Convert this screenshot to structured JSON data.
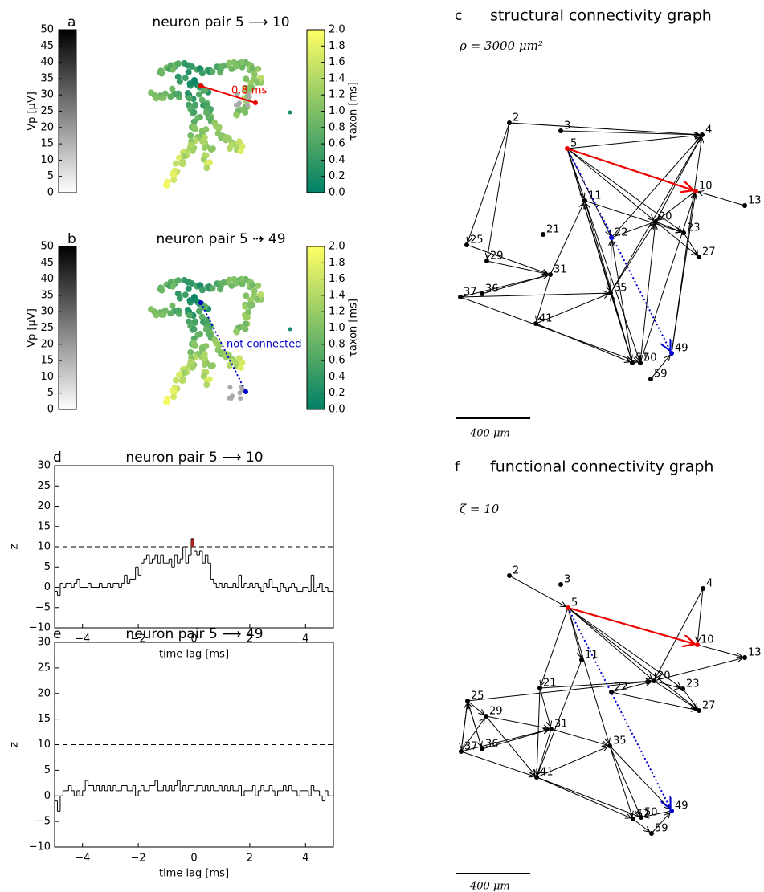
{
  "panels": {
    "a": {
      "letter": "a",
      "title": "neuron pair 5 ⟶ 10",
      "annotation": "0.8 ms"
    },
    "b": {
      "letter": "b",
      "title": "neuron pair 5 ⇢ 49",
      "annotation": "not connected"
    }
  },
  "colorbars": {
    "vp": {
      "label": "Vp [μV]",
      "lim": [
        0,
        50
      ],
      "ticks": [
        0,
        5,
        10,
        15,
        20,
        25,
        30,
        35,
        40,
        45,
        50
      ]
    },
    "tau": {
      "label": "τaxon [ms]",
      "lim": [
        0,
        2
      ],
      "ticks": [
        {
          "value": 0,
          "label": "0.0"
        },
        0.2,
        0.4,
        0.6,
        0.8,
        {
          "value": 1,
          "label": "1.0"
        },
        1.2,
        1.4,
        1.6,
        1.8,
        {
          "value": 2,
          "label": "2.0"
        }
      ]
    }
  },
  "graphs": {
    "c": {
      "letter": "c",
      "title": "structural connectivity graph",
      "parameter": "ρ = 3000 μm²",
      "scale_bar": "400 μm",
      "nodes": [
        "2",
        "3",
        "4",
        "5",
        "10",
        "13",
        "11",
        "21",
        "20",
        "22",
        "23",
        "25",
        "27",
        "29",
        "31",
        "35",
        "37",
        "36",
        "41",
        "57",
        "50",
        "49",
        "59"
      ]
    },
    "f": {
      "letter": "f",
      "title": "functional connectivity graph",
      "parameter": "ζ = 10",
      "scale_bar": "400 μm",
      "nodes": [
        "2",
        "3",
        "4",
        "5",
        "10",
        "13",
        "11",
        "21",
        "20",
        "22",
        "23",
        "25",
        "27",
        "29",
        "31",
        "35",
        "37",
        "36",
        "41",
        "57",
        "50",
        "49",
        "59"
      ]
    }
  },
  "chart_data": [
    {
      "type": "histogram",
      "letter": "d",
      "title": "neuron pair 5 ⟶ 10",
      "xlabel": "time lag [ms]",
      "ylabel": "z",
      "color": "#000000",
      "highlight_color": "#b22222",
      "threshold": 10,
      "xlim": [
        -5,
        5
      ],
      "ylim": [
        -10,
        30
      ],
      "xticks": [
        {
          "value": -4,
          "label": "−4"
        },
        {
          "value": -2,
          "label": "−2"
        },
        0,
        2,
        4
      ],
      "yticks": [
        {
          "value": -10,
          "label": "−10"
        },
        {
          "value": -5,
          "label": "−5"
        },
        0,
        5,
        10,
        15,
        20,
        25,
        30
      ],
      "bins": [
        -5.0,
        -4.9,
        -4.8,
        -4.7,
        -4.6,
        -4.5,
        -4.4,
        -4.3,
        -4.2,
        -4.1,
        -4.0,
        -3.9,
        -3.8,
        -3.7,
        -3.6,
        -3.5,
        -3.4,
        -3.3,
        -3.2,
        -3.1,
        -3.0,
        -2.9,
        -2.8,
        -2.7,
        -2.6,
        -2.5,
        -2.4,
        -2.3,
        -2.2,
        -2.1,
        -2.0,
        -1.9,
        -1.8,
        -1.7,
        -1.6,
        -1.5,
        -1.4,
        -1.3,
        -1.2,
        -1.1,
        -1.0,
        -0.9,
        -0.8,
        -0.7,
        -0.6,
        -0.5,
        -0.4,
        -0.3,
        -0.2,
        -0.1,
        0.0,
        0.1,
        0.2,
        0.3,
        0.4,
        0.5,
        0.6,
        0.7,
        0.8,
        0.9,
        1.0,
        1.1,
        1.2,
        1.3,
        1.4,
        1.5,
        1.6,
        1.7,
        1.8,
        1.9,
        2.0,
        2.1,
        2.2,
        2.3,
        2.4,
        2.5,
        2.6,
        2.7,
        2.8,
        2.9,
        3.0,
        3.1,
        3.2,
        3.3,
        3.4,
        3.5,
        3.6,
        3.7,
        3.8,
        3.9,
        4.0,
        4.1,
        4.2,
        4.3,
        4.4,
        4.5,
        4.6,
        4.7,
        4.8,
        4.9,
        5.0
      ],
      "values": [
        -1,
        -2,
        1,
        0,
        1,
        1,
        0,
        1,
        2,
        0,
        0,
        0,
        1,
        0,
        0,
        0,
        1,
        0,
        0,
        1,
        0,
        1,
        1,
        0,
        1,
        3,
        1,
        2,
        2,
        5,
        3,
        6,
        7,
        8,
        6,
        7,
        8,
        6,
        8,
        6,
        6,
        7,
        5,
        8,
        6,
        7,
        10,
        6,
        8,
        12,
        9,
        8,
        9,
        6,
        8,
        6,
        2,
        1,
        0,
        1,
        0,
        1,
        0,
        0,
        1,
        0,
        3,
        0,
        1,
        0,
        1,
        0,
        1,
        0,
        -1,
        1,
        0,
        2,
        0,
        0,
        -1,
        1,
        0,
        -1,
        0,
        1,
        0,
        -1,
        -1,
        0,
        0,
        -1,
        3,
        -1,
        0,
        1,
        -1,
        0,
        -1,
        -1
      ]
    },
    {
      "type": "histogram",
      "letter": "e",
      "title": "neuron pair 5 ⟶ 49",
      "xlabel": "time lag [ms]",
      "ylabel": "z",
      "color": "#000000",
      "highlight_color": "#b22222",
      "threshold": 10,
      "xlim": [
        -5,
        5
      ],
      "ylim": [
        -10,
        30
      ],
      "xticks": [
        {
          "value": -4,
          "label": "−4"
        },
        {
          "value": -2,
          "label": "−2"
        },
        0,
        2,
        4
      ],
      "yticks": [
        {
          "value": -10,
          "label": "−10"
        },
        {
          "value": -5,
          "label": "−5"
        },
        0,
        5,
        10,
        15,
        20,
        25,
        30
      ],
      "bins": [
        -5.0,
        -4.9,
        -4.8,
        -4.7,
        -4.6,
        -4.5,
        -4.4,
        -4.3,
        -4.2,
        -4.1,
        -4.0,
        -3.9,
        -3.8,
        -3.7,
        -3.6,
        -3.5,
        -3.4,
        -3.3,
        -3.2,
        -3.1,
        -3.0,
        -2.9,
        -2.8,
        -2.7,
        -2.6,
        -2.5,
        -2.4,
        -2.3,
        -2.2,
        -2.1,
        -2.0,
        -1.9,
        -1.8,
        -1.7,
        -1.6,
        -1.5,
        -1.4,
        -1.3,
        -1.2,
        -1.1,
        -1.0,
        -0.9,
        -0.8,
        -0.7,
        -0.6,
        -0.5,
        -0.4,
        -0.3,
        -0.2,
        -0.1,
        0.0,
        0.1,
        0.2,
        0.3,
        0.4,
        0.5,
        0.6,
        0.7,
        0.8,
        0.9,
        1.0,
        1.1,
        1.2,
        1.3,
        1.4,
        1.5,
        1.6,
        1.7,
        1.8,
        1.9,
        2.0,
        2.1,
        2.2,
        2.3,
        2.4,
        2.5,
        2.6,
        2.7,
        2.8,
        2.9,
        3.0,
        3.1,
        3.2,
        3.3,
        3.4,
        3.5,
        3.6,
        3.7,
        3.8,
        3.9,
        4.0,
        4.1,
        4.2,
        4.3,
        4.4,
        4.5,
        4.6,
        4.7,
        4.8,
        4.9,
        5.0
      ],
      "values": [
        -1,
        -3,
        0,
        1,
        1,
        2,
        1,
        0,
        1,
        0,
        1,
        3,
        2,
        2,
        1,
        2,
        1,
        2,
        1,
        2,
        1,
        2,
        1,
        1,
        2,
        2,
        1,
        1,
        2,
        0,
        1,
        2,
        1,
        1,
        2,
        2,
        3,
        1,
        1,
        2,
        1,
        2,
        1,
        2,
        3,
        1,
        2,
        1,
        2,
        2,
        1,
        2,
        2,
        1,
        2,
        1,
        2,
        1,
        1,
        2,
        1,
        2,
        1,
        2,
        1,
        1,
        2,
        0,
        1,
        1,
        1,
        2,
        0,
        1,
        2,
        1,
        1,
        2,
        1,
        0,
        1,
        1,
        2,
        1,
        2,
        1,
        1,
        0,
        1,
        1,
        1,
        0,
        2,
        1,
        1,
        0,
        -1,
        1,
        0,
        0
      ]
    }
  ]
}
